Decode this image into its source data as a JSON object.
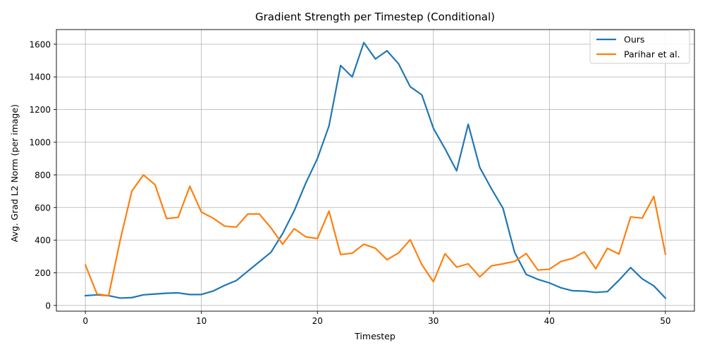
{
  "chart_data": {
    "type": "line",
    "title": "Gradient Strength per Timestep (Conditional)",
    "xlabel": "Timestep",
    "ylabel": "Avg. Grad L2 Norm (per image)",
    "xlim": [
      -2.5,
      52.5
    ],
    "ylim": [
      -35,
      1690
    ],
    "xticks": [
      0,
      10,
      20,
      30,
      40,
      50
    ],
    "yticks": [
      0,
      200,
      400,
      600,
      800,
      1000,
      1200,
      1400,
      1600
    ],
    "grid": true,
    "legend_position": "top-right",
    "x": [
      0,
      1,
      2,
      3,
      4,
      5,
      6,
      7,
      8,
      9,
      10,
      11,
      12,
      13,
      14,
      15,
      16,
      17,
      18,
      19,
      20,
      21,
      22,
      23,
      24,
      25,
      26,
      27,
      28,
      29,
      30,
      31,
      32,
      33,
      34,
      35,
      36,
      37,
      38,
      39,
      40,
      41,
      42,
      43,
      44,
      45,
      46,
      47,
      48,
      49,
      50
    ],
    "series": [
      {
        "name": "Ours",
        "color": "#1f77b4",
        "values": [
          60,
          65,
          60,
          45,
          48,
          65,
          70,
          75,
          77,
          67,
          67,
          88,
          123,
          152,
          210,
          268,
          326,
          440,
          580,
          750,
          900,
          1100,
          1470,
          1400,
          1610,
          1510,
          1560,
          1480,
          1340,
          1290,
          1085,
          960,
          825,
          1110,
          845,
          715,
          595,
          325,
          190,
          160,
          138,
          108,
          90,
          88,
          80,
          85,
          155,
          232,
          163,
          120,
          45
        ]
      },
      {
        "name": "Parihar et al.",
        "color": "#ff7f0e",
        "values": [
          248,
          70,
          60,
          400,
          700,
          800,
          740,
          532,
          540,
          730,
          572,
          535,
          486,
          480,
          560,
          560,
          475,
          375,
          470,
          420,
          410,
          578,
          312,
          320,
          375,
          350,
          280,
          322,
          403,
          250,
          145,
          317,
          235,
          255,
          175,
          243,
          255,
          270,
          318,
          217,
          222,
          270,
          288,
          328,
          225,
          350,
          315,
          542,
          535,
          668,
          315
        ]
      }
    ]
  }
}
